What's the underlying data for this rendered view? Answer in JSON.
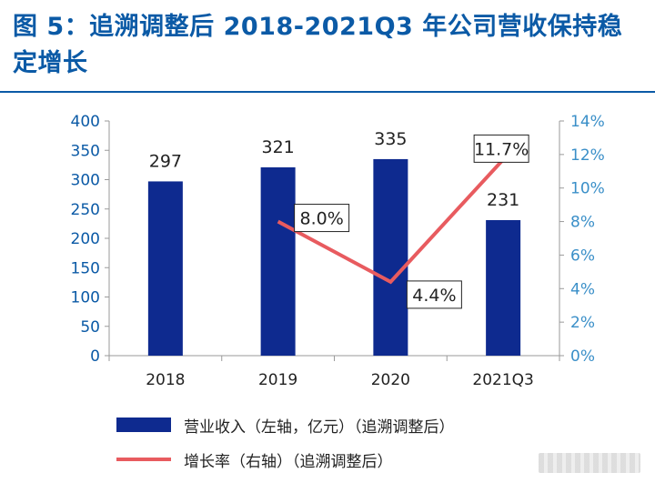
{
  "title": "图 5：追溯调整后 2018-2021Q3 年公司营收保持稳定增长",
  "colors": {
    "bar": "#0e2a8f",
    "line": "#e85b5f",
    "left_axis": "#0b5aa6",
    "right_axis": "#3a8fc8"
  },
  "chart_data": {
    "type": "bar",
    "categories": [
      "2018",
      "2019",
      "2020",
      "2021Q3"
    ],
    "series": [
      {
        "name": "营业收入（左轴，亿元）（追溯调整后）",
        "type": "bar",
        "axis": "left",
        "values": [
          297,
          321,
          335,
          231
        ],
        "labels": [
          "297",
          "321",
          "335",
          "231"
        ]
      },
      {
        "name": "增长率（右轴）（追溯调整后）",
        "type": "line",
        "axis": "right",
        "values": [
          null,
          8.0,
          4.4,
          11.7
        ],
        "labels": [
          "",
          "8.0%",
          "4.4%",
          "11.7%"
        ]
      }
    ],
    "left_axis": {
      "range": [
        0,
        400
      ],
      "ticks": [
        "0",
        "50",
        "100",
        "150",
        "200",
        "250",
        "300",
        "350",
        "400"
      ]
    },
    "right_axis": {
      "range": [
        0,
        14
      ],
      "ticks": [
        "0%",
        "2%",
        "4%",
        "6%",
        "8%",
        "10%",
        "12%",
        "14%"
      ]
    },
    "legend_position": "bottom",
    "grid": false
  }
}
